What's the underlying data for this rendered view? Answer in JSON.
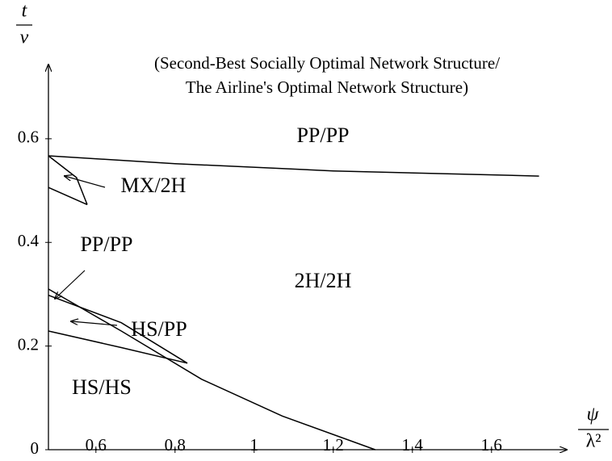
{
  "chart_data": {
    "type": "line",
    "title": [
      "(Second-Best Socially Optimal Network Structure/",
      "The Airline's Optimal Network Structure)"
    ],
    "y_label": {
      "numerator": "t",
      "denominator": "v"
    },
    "x_label": {
      "numerator": "ψ",
      "denominator": "λ²"
    },
    "xlim": [
      0.48,
      1.78
    ],
    "ylim": [
      0,
      0.74
    ],
    "xticks": [
      0.6,
      0.8,
      1,
      1.2,
      1.4,
      1.6
    ],
    "yticks": [
      0,
      0.2,
      0.4,
      0.6
    ],
    "color": "#000000",
    "series": [
      {
        "x": [
          0.48,
          0.8,
          1.2,
          1.72
        ],
        "values": [
          0.567,
          0.552,
          0.538,
          0.528
        ]
      },
      {
        "x": [
          0.48,
          0.551,
          0.578
        ],
        "values": [
          0.567,
          0.525,
          0.473
        ]
      },
      {
        "x": [
          0.48,
          0.578
        ],
        "values": [
          0.506,
          0.473
        ]
      },
      {
        "x": [
          0.48,
          0.664,
          0.867,
          1.071,
          1.306
        ],
        "values": [
          0.31,
          0.229,
          0.136,
          0.065,
          0
        ]
      },
      {
        "x": [
          0.48,
          0.664,
          0.831
        ],
        "values": [
          0.298,
          0.245,
          0.167
        ]
      },
      {
        "x": [
          0.48,
          0.664,
          0.831
        ],
        "values": [
          0.229,
          0.197,
          0.167
        ]
      }
    ],
    "annotations": [
      "PP/PP",
      "MX/2H",
      "PP/PP",
      "2H/2H",
      "HS/PP",
      "HS/HS"
    ]
  }
}
